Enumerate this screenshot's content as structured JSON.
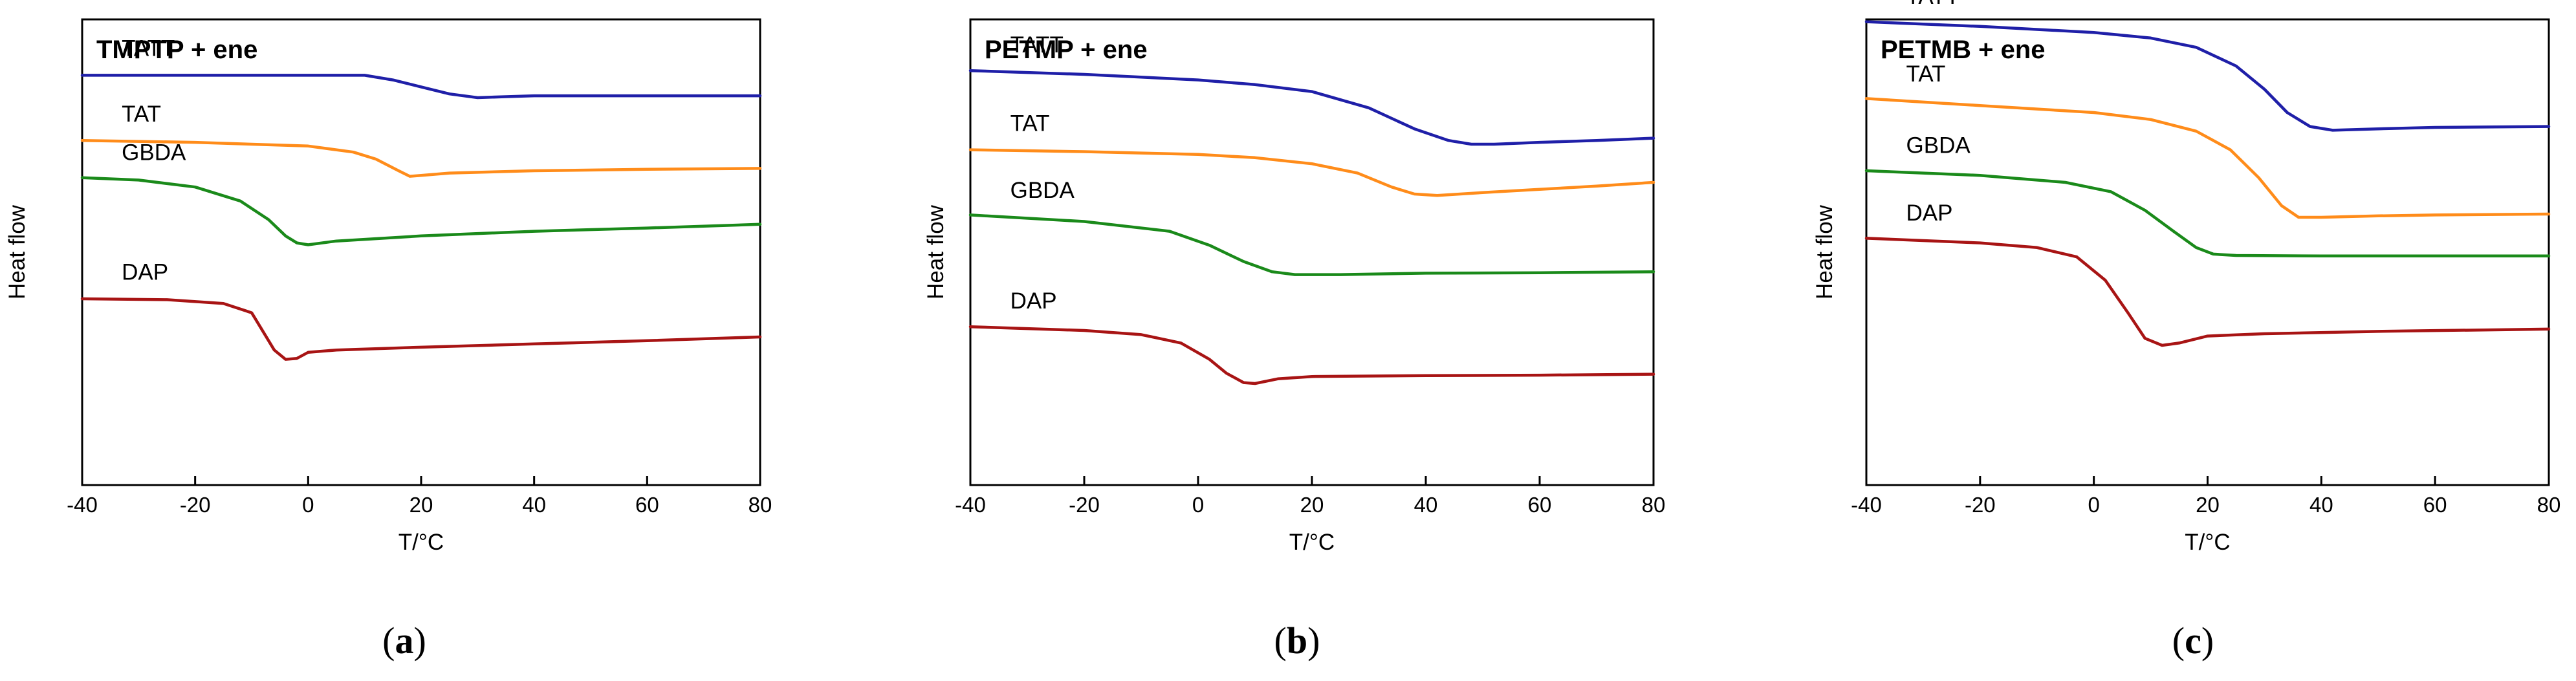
{
  "chart_data": [
    {
      "type": "line",
      "panel_caption_open": "(",
      "panel_caption_letter": "a",
      "panel_caption_close": ")",
      "title": "TMPTP + ene",
      "xlabel": "T/°C",
      "ylabel": "Heat flow",
      "xlim": [
        -40,
        80
      ],
      "xticks": [
        "-40",
        "-20",
        "0",
        "20",
        "40",
        "60",
        "80"
      ],
      "yaxis_units": "arbitrary (stacked curves, top = 1, bottom = 0)",
      "series": [
        {
          "name": "TATT",
          "color": "#1f1fa8",
          "label_t": -33,
          "points": [
            [
              -40,
              0.88
            ],
            [
              0,
              0.88
            ],
            [
              10,
              0.88
            ],
            [
              15,
              0.87
            ],
            [
              20,
              0.855
            ],
            [
              25,
              0.84
            ],
            [
              30,
              0.832
            ],
            [
              35,
              0.834
            ],
            [
              40,
              0.836
            ],
            [
              80,
              0.836
            ]
          ]
        },
        {
          "name": "TAT",
          "color": "#ff8c1a",
          "label_t": -33,
          "points": [
            [
              -40,
              0.74
            ],
            [
              -20,
              0.736
            ],
            [
              0,
              0.728
            ],
            [
              8,
              0.715
            ],
            [
              12,
              0.7
            ],
            [
              16,
              0.675
            ],
            [
              18,
              0.663
            ],
            [
              20,
              0.665
            ],
            [
              25,
              0.67
            ],
            [
              40,
              0.675
            ],
            [
              60,
              0.678
            ],
            [
              80,
              0.68
            ]
          ]
        },
        {
          "name": "GBDA",
          "color": "#1a8a1a",
          "label_t": -33,
          "points": [
            [
              -40,
              0.66
            ],
            [
              -30,
              0.655
            ],
            [
              -20,
              0.64
            ],
            [
              -12,
              0.61
            ],
            [
              -7,
              0.57
            ],
            [
              -4,
              0.535
            ],
            [
              -2,
              0.52
            ],
            [
              0,
              0.516
            ],
            [
              5,
              0.524
            ],
            [
              20,
              0.535
            ],
            [
              40,
              0.545
            ],
            [
              60,
              0.552
            ],
            [
              80,
              0.56
            ]
          ]
        },
        {
          "name": "DAP",
          "color": "#a81414",
          "label_t": -33,
          "points": [
            [
              -40,
              0.4
            ],
            [
              -25,
              0.398
            ],
            [
              -15,
              0.39
            ],
            [
              -10,
              0.37
            ],
            [
              -8,
              0.33
            ],
            [
              -6,
              0.29
            ],
            [
              -4,
              0.27
            ],
            [
              -2,
              0.272
            ],
            [
              0,
              0.285
            ],
            [
              5,
              0.29
            ],
            [
              20,
              0.296
            ],
            [
              40,
              0.303
            ],
            [
              60,
              0.31
            ],
            [
              80,
              0.318
            ]
          ]
        }
      ]
    },
    {
      "type": "line",
      "panel_caption_open": "(",
      "panel_caption_letter": "b",
      "panel_caption_close": ")",
      "title": "PETMP + ene",
      "xlabel": "T/°C",
      "ylabel": "Heat flow",
      "xlim": [
        -40,
        80
      ],
      "xticks": [
        "-40",
        "-20",
        "0",
        "20",
        "40",
        "60",
        "80"
      ],
      "yaxis_units": "arbitrary (stacked curves, top = 1, bottom = 0)",
      "series": [
        {
          "name": "TATT",
          "color": "#1f1fa8",
          "label_t": -33,
          "points": [
            [
              -40,
              0.89
            ],
            [
              -20,
              0.882
            ],
            [
              0,
              0.87
            ],
            [
              10,
              0.86
            ],
            [
              20,
              0.845
            ],
            [
              30,
              0.81
            ],
            [
              38,
              0.765
            ],
            [
              44,
              0.74
            ],
            [
              48,
              0.732
            ],
            [
              52,
              0.732
            ],
            [
              60,
              0.736
            ],
            [
              70,
              0.74
            ],
            [
              80,
              0.745
            ]
          ]
        },
        {
          "name": "TAT",
          "color": "#ff8c1a",
          "label_t": -33,
          "points": [
            [
              -40,
              0.72
            ],
            [
              -20,
              0.716
            ],
            [
              0,
              0.71
            ],
            [
              10,
              0.703
            ],
            [
              20,
              0.69
            ],
            [
              28,
              0.67
            ],
            [
              34,
              0.64
            ],
            [
              38,
              0.625
            ],
            [
              42,
              0.622
            ],
            [
              50,
              0.628
            ],
            [
              60,
              0.635
            ],
            [
              70,
              0.642
            ],
            [
              80,
              0.65
            ]
          ]
        },
        {
          "name": "GBDA",
          "color": "#1a8a1a",
          "label_t": -33,
          "points": [
            [
              -40,
              0.58
            ],
            [
              -20,
              0.566
            ],
            [
              -5,
              0.545
            ],
            [
              2,
              0.515
            ],
            [
              8,
              0.48
            ],
            [
              13,
              0.458
            ],
            [
              17,
              0.452
            ],
            [
              25,
              0.452
            ],
            [
              40,
              0.455
            ],
            [
              60,
              0.456
            ],
            [
              80,
              0.458
            ]
          ]
        },
        {
          "name": "DAP",
          "color": "#a81414",
          "label_t": -33,
          "points": [
            [
              -40,
              0.34
            ],
            [
              -20,
              0.332
            ],
            [
              -10,
              0.323
            ],
            [
              -3,
              0.305
            ],
            [
              2,
              0.27
            ],
            [
              5,
              0.24
            ],
            [
              8,
              0.22
            ],
            [
              10,
              0.218
            ],
            [
              14,
              0.228
            ],
            [
              20,
              0.233
            ],
            [
              40,
              0.235
            ],
            [
              60,
              0.236
            ],
            [
              80,
              0.238
            ]
          ]
        }
      ]
    },
    {
      "type": "line",
      "panel_caption_open": "(",
      "panel_caption_letter": "c",
      "panel_caption_close": ")",
      "title": "PETMB + ene",
      "xlabel": "T/°C",
      "ylabel": "Heat flow",
      "xlim": [
        -40,
        80
      ],
      "xticks": [
        "-40",
        "-20",
        "0",
        "20",
        "40",
        "60",
        "80"
      ],
      "yaxis_units": "arbitrary (stacked curves, top = 1, bottom = 0)",
      "series": [
        {
          "name": "TATT",
          "color": "#1f1fa8",
          "label_t": -33,
          "points": [
            [
              -40,
              0.995
            ],
            [
              -20,
              0.985
            ],
            [
              0,
              0.972
            ],
            [
              10,
              0.96
            ],
            [
              18,
              0.94
            ],
            [
              25,
              0.9
            ],
            [
              30,
              0.85
            ],
            [
              34,
              0.8
            ],
            [
              38,
              0.77
            ],
            [
              42,
              0.762
            ],
            [
              50,
              0.765
            ],
            [
              60,
              0.768
            ],
            [
              80,
              0.77
            ]
          ]
        },
        {
          "name": "TAT",
          "color": "#ff8c1a",
          "label_t": -33,
          "points": [
            [
              -40,
              0.83
            ],
            [
              -20,
              0.815
            ],
            [
              0,
              0.8
            ],
            [
              10,
              0.785
            ],
            [
              18,
              0.76
            ],
            [
              24,
              0.72
            ],
            [
              29,
              0.66
            ],
            [
              33,
              0.6
            ],
            [
              36,
              0.575
            ],
            [
              40,
              0.575
            ],
            [
              50,
              0.578
            ],
            [
              60,
              0.58
            ],
            [
              80,
              0.582
            ]
          ]
        },
        {
          "name": "GBDA",
          "color": "#1a8a1a",
          "label_t": -33,
          "points": [
            [
              -40,
              0.675
            ],
            [
              -20,
              0.665
            ],
            [
              -5,
              0.65
            ],
            [
              3,
              0.63
            ],
            [
              9,
              0.59
            ],
            [
              14,
              0.545
            ],
            [
              18,
              0.51
            ],
            [
              21,
              0.496
            ],
            [
              25,
              0.493
            ],
            [
              40,
              0.492
            ],
            [
              60,
              0.492
            ],
            [
              80,
              0.492
            ]
          ]
        },
        {
          "name": "DAP",
          "color": "#a81414",
          "label_t": -33,
          "points": [
            [
              -40,
              0.53
            ],
            [
              -20,
              0.52
            ],
            [
              -10,
              0.51
            ],
            [
              -3,
              0.49
            ],
            [
              2,
              0.44
            ],
            [
              6,
              0.37
            ],
            [
              9,
              0.315
            ],
            [
              12,
              0.3
            ],
            [
              15,
              0.305
            ],
            [
              20,
              0.32
            ],
            [
              30,
              0.325
            ],
            [
              50,
              0.33
            ],
            [
              80,
              0.335
            ]
          ]
        }
      ]
    }
  ]
}
